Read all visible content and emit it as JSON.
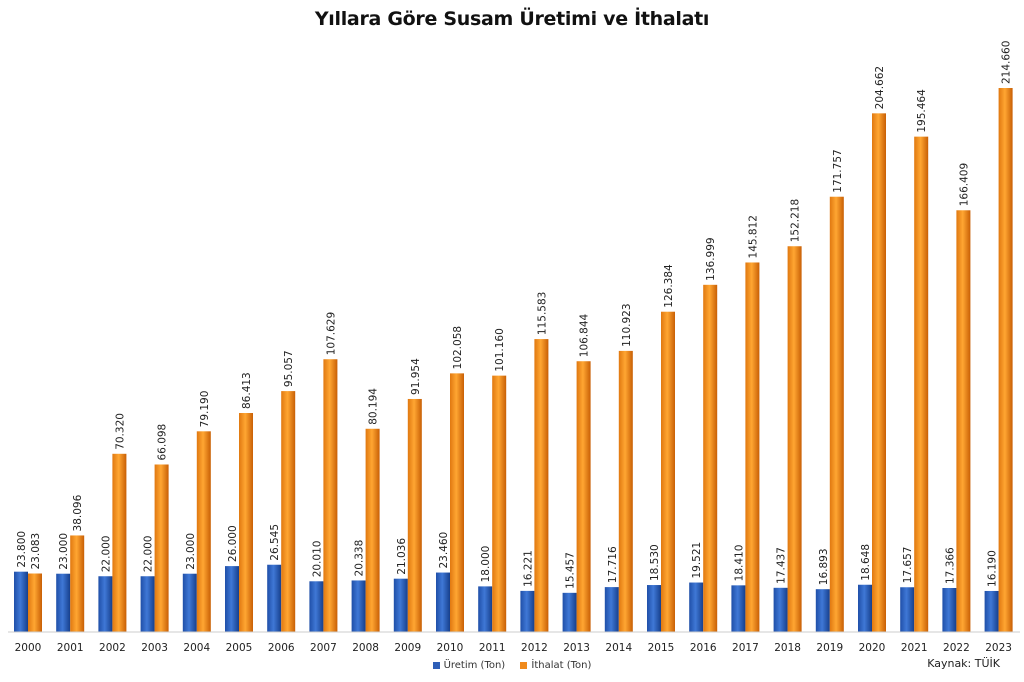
{
  "chart_data": {
    "type": "bar",
    "title": "Yıllara Göre Susam Üretimi ve İthalatı",
    "categories": [
      "2000",
      "2001",
      "2002",
      "2003",
      "2004",
      "2005",
      "2006",
      "2007",
      "2008",
      "2009",
      "2010",
      "2011",
      "2012",
      "2013",
      "2014",
      "2015",
      "2016",
      "2017",
      "2018",
      "2019",
      "2020",
      "2021",
      "2022",
      "2023"
    ],
    "series": [
      {
        "name": "Üretim (Ton)",
        "color": "#2e5fb8",
        "values": [
          23800,
          23000,
          22000,
          22000,
          23000,
          26000,
          26545,
          20010,
          20338,
          21036,
          23460,
          18000,
          16221,
          15457,
          17716,
          18530,
          19521,
          18410,
          17437,
          16893,
          18648,
          17657,
          17366,
          16190
        ],
        "labels": [
          "23.800",
          "23.000",
          "22.000",
          "22.000",
          "23.000",
          "26.000",
          "26.545",
          "20.010",
          "20.338",
          "21.036",
          "23.460",
          "18.000",
          "16.221",
          "15.457",
          "17.716",
          "18.530",
          "19.521",
          "18.410",
          "17.437",
          "16.893",
          "18.648",
          "17.657",
          "17.366",
          "16.190"
        ]
      },
      {
        "name": "İthalat (Ton)",
        "color": "#f08a1c",
        "values": [
          23083,
          38096,
          70320,
          66098,
          79190,
          86413,
          95057,
          107629,
          80194,
          91954,
          102058,
          101160,
          115583,
          106844,
          110923,
          126384,
          136999,
          145812,
          152218,
          171757,
          204662,
          195464,
          166409,
          214660
        ],
        "labels": [
          "23.083",
          "38.096",
          "70.320",
          "66.098",
          "79.190",
          "86.413",
          "95.057",
          "107.629",
          "80.194",
          "91.954",
          "102.058",
          "101.160",
          "115.583",
          "106.844",
          "110.923",
          "126.384",
          "136.999",
          "145.812",
          "152.218",
          "171.757",
          "204.662",
          "195.464",
          "166.409",
          "214.660"
        ]
      }
    ],
    "xlabel": "",
    "ylabel": "",
    "ylim": [
      0,
      214660
    ],
    "grid": false,
    "legend": "bottom-center",
    "source_note": "Kaynak: TÜİK"
  }
}
